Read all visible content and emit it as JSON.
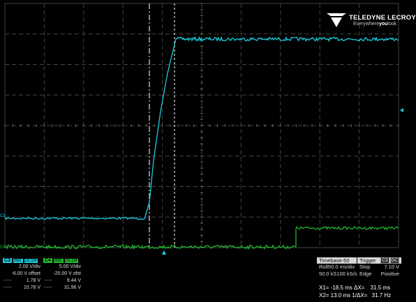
{
  "brand": {
    "name": "TELEDYNE LECROY",
    "tagline_pre": "Everywhere",
    "tagline_bold": "you",
    "tagline_post": "look"
  },
  "colors": {
    "c3": "#19cfe3",
    "c4": "#21c030",
    "grid": "#444444",
    "cursor": "#dddddd",
    "background": "#000000"
  },
  "grid_marker_labels": {
    "c3": "C3",
    "c4": "C4"
  },
  "channels": {
    "c3": {
      "label": "C3",
      "bw_tag": "BwL",
      "coupling": "DC1M",
      "scale": "2.00 V/div",
      "offset": "-6.00 V offset",
      "cursor1": "1.78 V",
      "cursor2": "10.78 V",
      "dash1": "-----",
      "dash2": "-----"
    },
    "c4": {
      "label": "C4",
      "bw_tag": "BwL",
      "coupling": "DC1M",
      "scale": "5.00 V/div",
      "offset": "-20.00 V ofst",
      "cursor1": "9.44 V",
      "cursor2": "31.96 V",
      "dash1": "-----",
      "dash2": "-----"
    }
  },
  "timebase": {
    "label": "Timebase",
    "delay": "-50 ms",
    "mode": "Roll",
    "time_div": "50.0 ms/div",
    "samples": "50.0 kS",
    "rate": "100 kS/s"
  },
  "trigger": {
    "label": "Trigger",
    "source": "C3",
    "coupling": "DC",
    "mode": "Stop",
    "level": "7.10 V",
    "type": "Edge",
    "slope": "Positive"
  },
  "cursors": {
    "x1": "X1= -18.5 ms",
    "dx": "ΔX=",
    "dx_val": "31.5 ms",
    "x2": "X2= 13.0 ms",
    "inv_dx": "1/ΔX=",
    "inv_dx_val": "31.7 Hz"
  }
}
